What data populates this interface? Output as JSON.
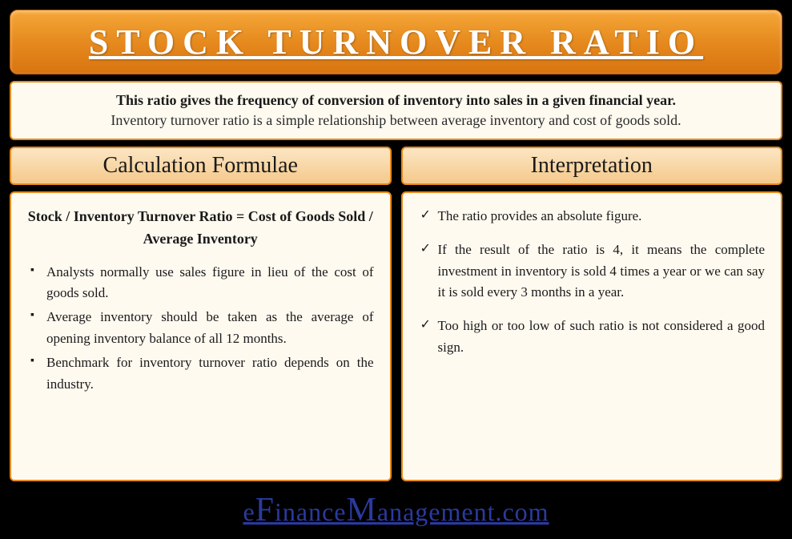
{
  "title": "STOCK TURNOVER RATIO",
  "intro": {
    "bold": "This ratio gives the frequency of conversion of inventory into sales in a given financial year.",
    "text": "Inventory turnover ratio is a simple relationship between average inventory and cost of goods sold."
  },
  "left": {
    "header": "Calculation Formulae",
    "formula": "Stock / Inventory Turnover Ratio = Cost of Goods Sold / Average Inventory",
    "bullets": [
      "Analysts normally use sales figure in lieu of the cost of goods sold.",
      "Average inventory should be taken as the average of opening inventory balance of all 12 months.",
      "Benchmark for inventory turnover ratio depends on the industry."
    ]
  },
  "right": {
    "header": "Interpretation",
    "bullets": [
      "The ratio provides an absolute figure.",
      "If the result of the ratio is 4, it means the complete investment in inventory is sold 4 times a year or we can say it is sold every 3 months in a year.",
      "Too high or too low of such ratio is not considered a good sign."
    ]
  },
  "footer": {
    "parts": [
      "e",
      "F",
      "inance",
      "M",
      "anagement.com"
    ]
  },
  "colors": {
    "background": "#000000",
    "banner_gradient_top": "#f5a739",
    "banner_gradient_bottom": "#d87410",
    "box_bg": "#fffaf0",
    "border": "#e68a1e",
    "header_gradient_top": "#fce6c4",
    "header_gradient_bottom": "#f5c98a",
    "footer_text": "#2a3a9f",
    "title_text": "#ffffff"
  }
}
